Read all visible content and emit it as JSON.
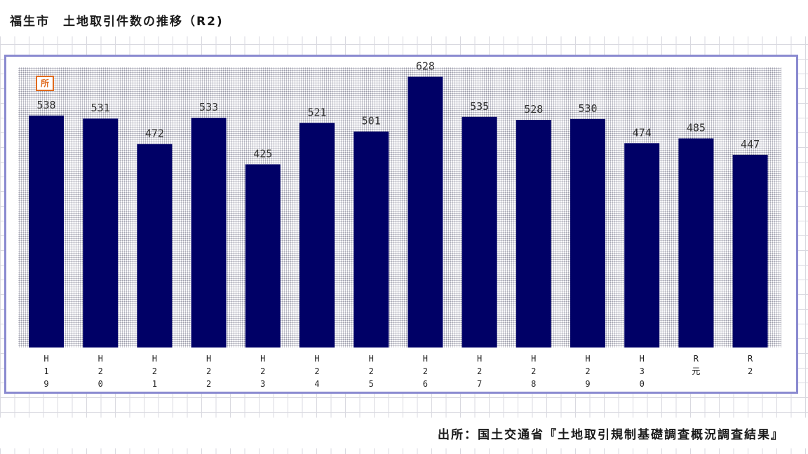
{
  "title": "福生市　土地取引件数の推移（R2)",
  "source": "出所：国土交通省『土地取引規制基礎調査概況調査結果』",
  "legend_icon_label": "所",
  "colors": {
    "bar": "#000066",
    "frame": "#8a8ad0",
    "icon": "#e06a1e"
  },
  "chart_data": {
    "type": "bar",
    "title": "福生市　土地取引件数の推移（R2)",
    "categories": [
      "H19",
      "H20",
      "H21",
      "H22",
      "H23",
      "H24",
      "H25",
      "H26",
      "H27",
      "H28",
      "H29",
      "H30",
      "R元",
      "R2"
    ],
    "category_label_lines": [
      [
        "H",
        "1",
        "9"
      ],
      [
        "H",
        "2",
        "0"
      ],
      [
        "H",
        "2",
        "1"
      ],
      [
        "H",
        "2",
        "2"
      ],
      [
        "H",
        "2",
        "3"
      ],
      [
        "H",
        "2",
        "4"
      ],
      [
        "H",
        "2",
        "5"
      ],
      [
        "H",
        "2",
        "6"
      ],
      [
        "H",
        "2",
        "7"
      ],
      [
        "H",
        "2",
        "8"
      ],
      [
        "H",
        "2",
        "9"
      ],
      [
        "H",
        "3",
        "0"
      ],
      [
        "R",
        "元"
      ],
      [
        "R",
        "2"
      ]
    ],
    "values": [
      538,
      531,
      472,
      533,
      425,
      521,
      501,
      628,
      535,
      528,
      530,
      474,
      485,
      447
    ],
    "ylim": [
      0,
      650
    ],
    "grid": false,
    "xlabel": "",
    "ylabel": ""
  }
}
